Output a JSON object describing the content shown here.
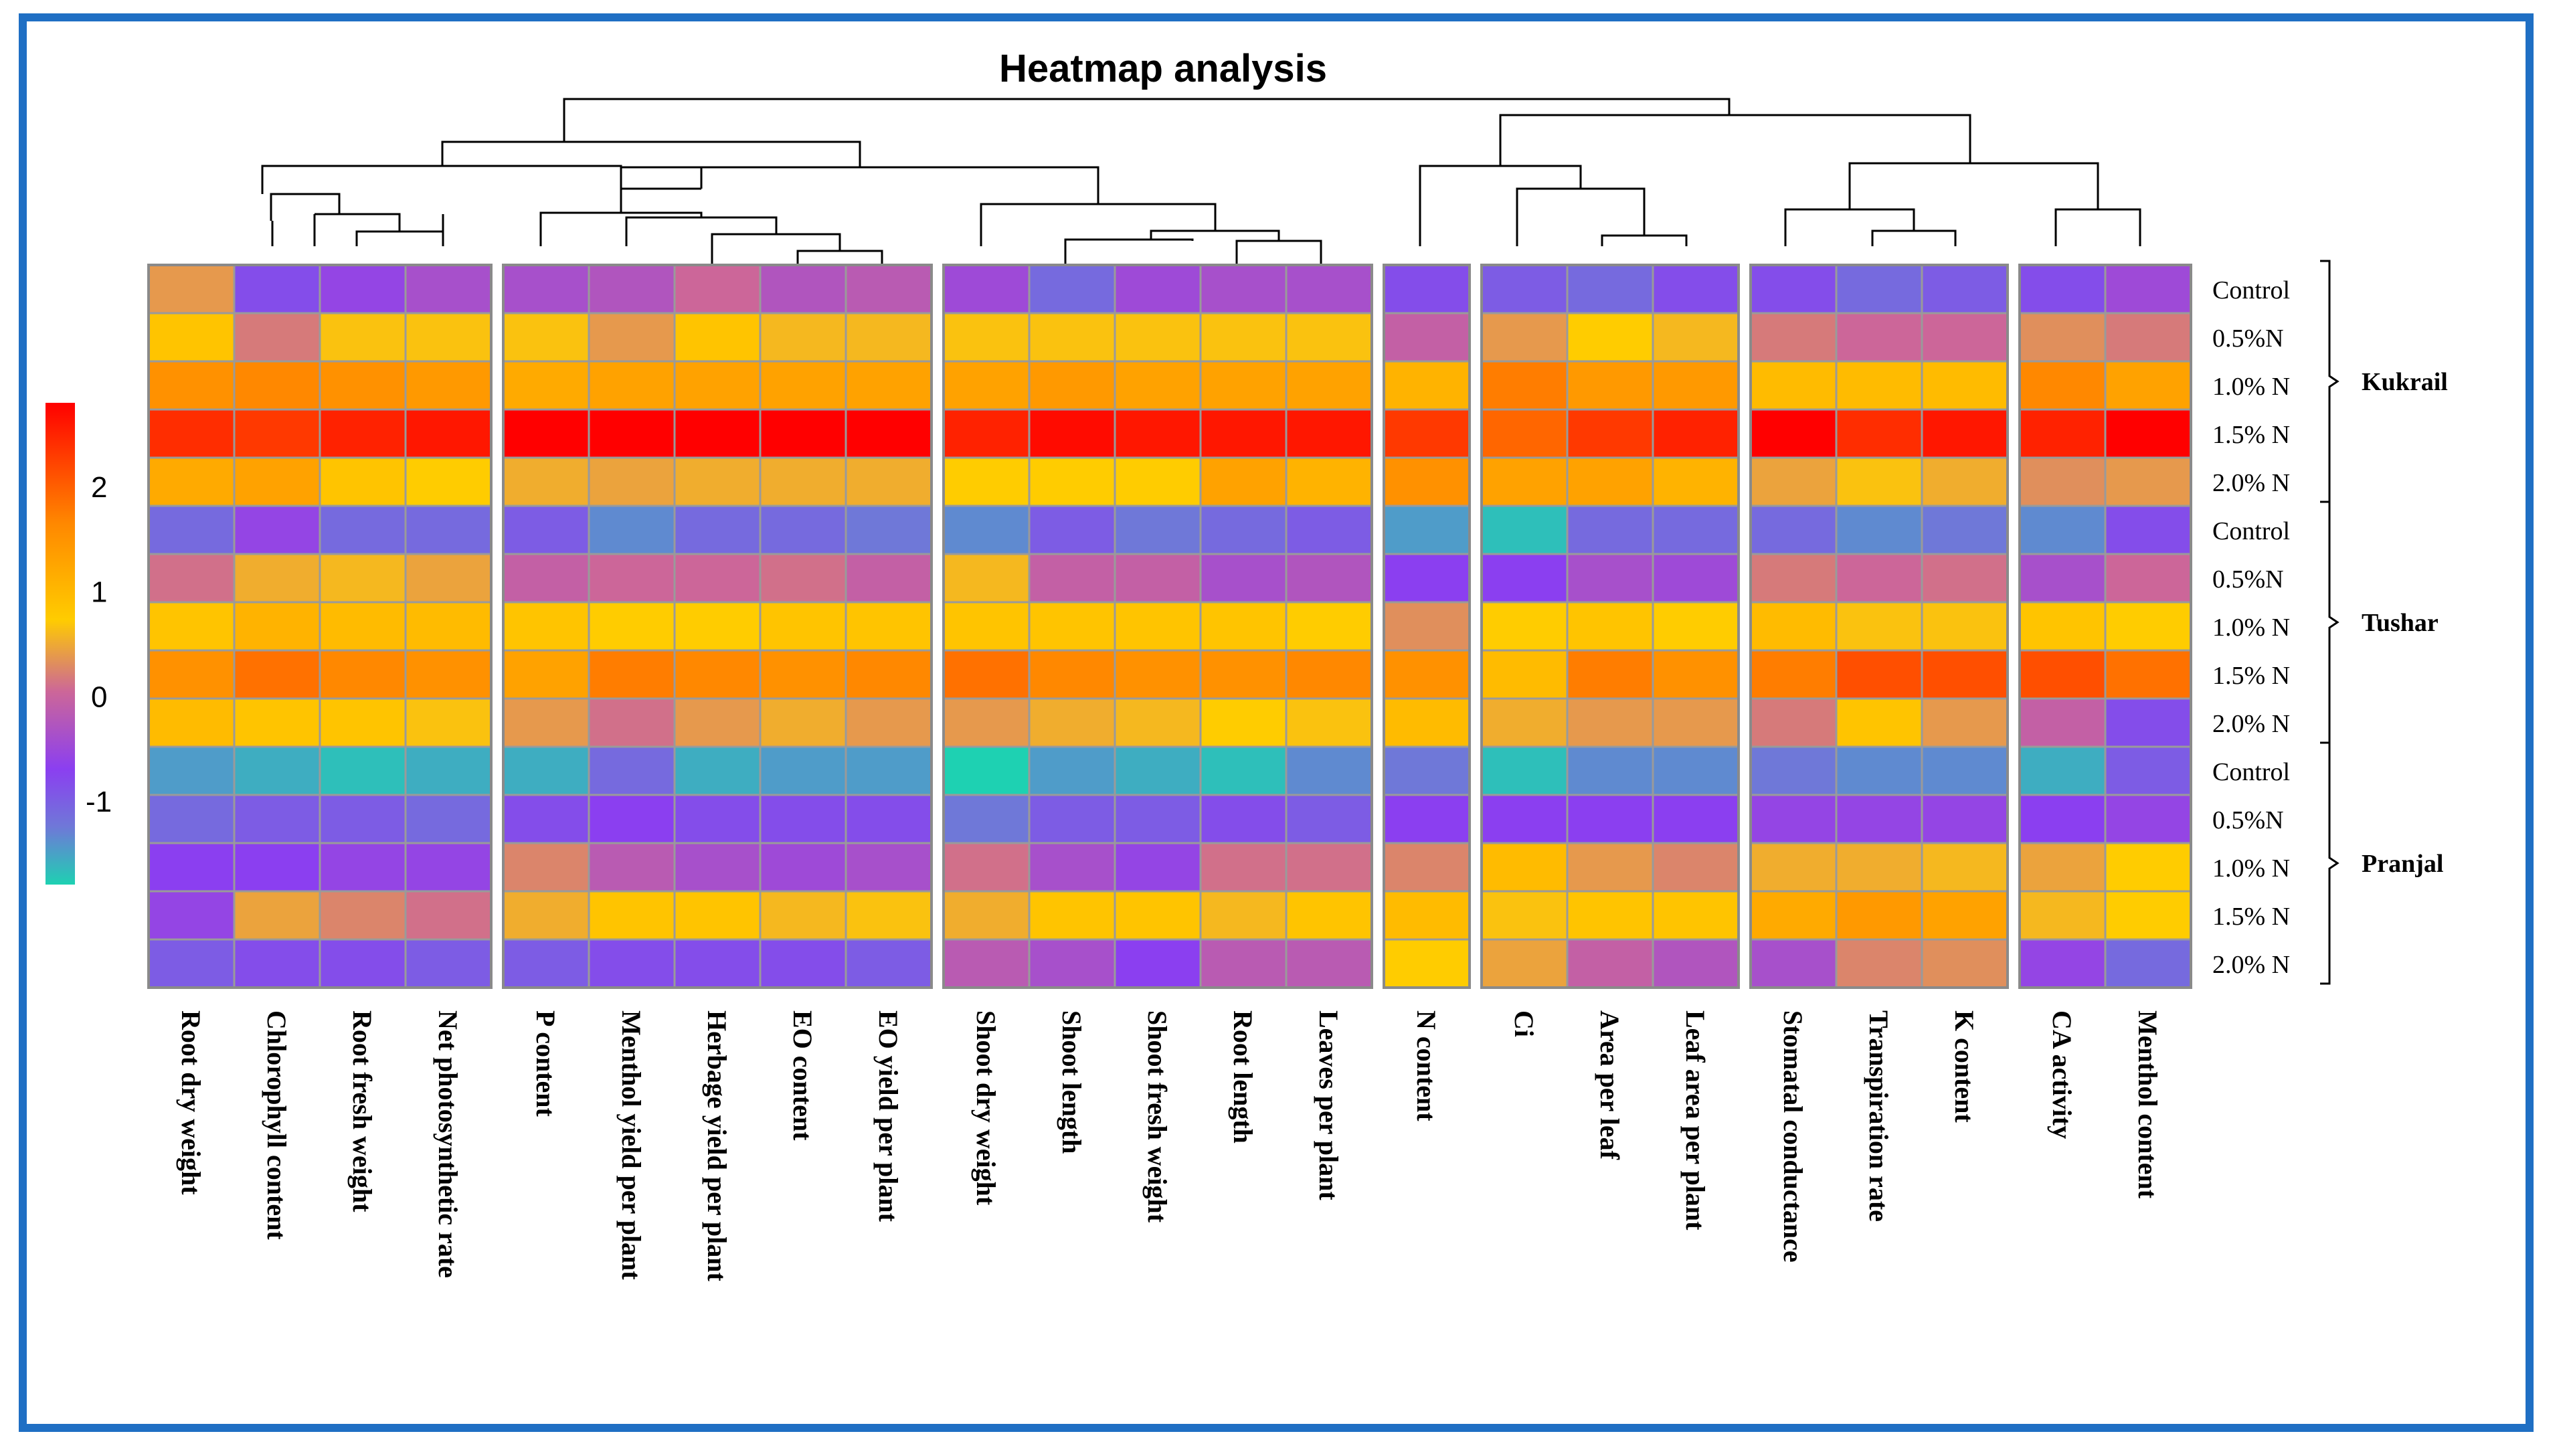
{
  "chart_data": {
    "type": "heatmap",
    "title": "Heatmap analysis",
    "rows": [
      "Control",
      "0.5%N",
      "1.0% N",
      "1.5% N",
      "2.0% N",
      "Control",
      "0.5%N",
      "1.0% N",
      "1.5% N",
      "2.0% N",
      "Control",
      "0.5%N",
      "1.0% N",
      "1.5% N",
      "2.0% N"
    ],
    "groups": [
      {
        "name": "Kukrail",
        "rows": [
          0,
          4
        ]
      },
      {
        "name": "Tushar",
        "rows": [
          5,
          9
        ]
      },
      {
        "name": "Pranjal",
        "rows": [
          10,
          14
        ]
      }
    ],
    "columns": [
      "Root dry weight",
      "Chlorophyll content",
      "Root fresh weight",
      "Net photosynthetic rate",
      "P content",
      "Menthol yield per plant",
      "Herbage yield per plant",
      "EO content",
      "EO yield per plant",
      "Shoot dry weight",
      "Shoot length",
      "Shoot fresh weight",
      "Root length",
      "Leaves per plant",
      "N content",
      "Ci",
      "Area per leaf",
      "Leaf area per plant",
      "Stomatal conductance",
      "Transpiration rate",
      "K content",
      "CA activity",
      "Menthol content"
    ],
    "column_blocks": [
      4,
      5,
      5,
      1,
      3,
      3,
      2
    ],
    "colorbar": {
      "ticks": [
        2,
        1,
        0,
        -1
      ],
      "range": [
        -1.8,
        2.8
      ],
      "colors": [
        "#1ed1b2",
        "#8b3ff0",
        "#cc6699",
        "#ffcc00",
        "#ff9900",
        "#ff0000"
      ]
    },
    "values": [
      [
        0.3,
        -1.0,
        -0.8,
        -0.6,
        -0.6,
        -0.5,
        -0.2,
        -0.5,
        -0.4,
        -0.7,
        -1.2,
        -0.7,
        -0.6,
        -0.6,
        -1.0,
        -1.1,
        -1.2,
        -1.0,
        -1.0,
        -1.2,
        -1.1,
        -1.0,
        -0.7
      ],
      [
        0.9,
        0.0,
        0.7,
        0.7,
        0.7,
        0.3,
        0.9,
        0.6,
        0.6,
        0.7,
        0.7,
        0.7,
        0.7,
        0.7,
        -0.3,
        0.3,
        0.8,
        0.6,
        0.0,
        -0.2,
        -0.2,
        0.2,
        0.0
      ],
      [
        1.5,
        1.6,
        1.5,
        1.4,
        1.2,
        1.3,
        1.3,
        1.3,
        1.3,
        1.3,
        1.4,
        1.3,
        1.3,
        1.3,
        1.1,
        1.7,
        1.4,
        1.4,
        1.0,
        1.0,
        1.0,
        1.6,
        1.3
      ],
      [
        2.4,
        2.3,
        2.5,
        2.6,
        2.8,
        2.8,
        2.8,
        2.8,
        2.8,
        2.5,
        2.7,
        2.6,
        2.6,
        2.6,
        2.3,
        1.9,
        2.3,
        2.5,
        2.8,
        2.4,
        2.6,
        2.5,
        2.8
      ],
      [
        1.2,
        1.3,
        0.9,
        0.8,
        0.5,
        0.4,
        0.5,
        0.5,
        0.5,
        0.8,
        0.8,
        0.8,
        1.3,
        1.1,
        1.5,
        1.3,
        1.3,
        1.1,
        0.4,
        0.7,
        0.5,
        0.2,
        0.3
      ],
      [
        -1.2,
        -0.8,
        -1.2,
        -1.2,
        -1.1,
        -1.4,
        -1.2,
        -1.2,
        -1.3,
        -1.4,
        -1.1,
        -1.3,
        -1.2,
        -1.1,
        -1.5,
        -1.7,
        -1.2,
        -1.2,
        -1.2,
        -1.4,
        -1.3,
        -1.4,
        -1.0
      ],
      [
        -0.1,
        0.5,
        0.6,
        0.4,
        -0.3,
        -0.2,
        -0.2,
        -0.1,
        -0.3,
        0.6,
        -0.3,
        -0.3,
        -0.6,
        -0.5,
        -0.9,
        -0.9,
        -0.6,
        -0.7,
        0.0,
        -0.2,
        -0.1,
        -0.6,
        -0.2
      ],
      [
        0.9,
        1.1,
        1.0,
        1.0,
        0.9,
        0.8,
        0.8,
        0.9,
        0.9,
        0.9,
        0.9,
        0.9,
        0.9,
        0.8,
        0.2,
        0.8,
        0.9,
        0.8,
        1.0,
        0.7,
        0.7,
        0.9,
        0.8
      ],
      [
        1.5,
        1.8,
        1.6,
        1.5,
        1.3,
        1.7,
        1.6,
        1.5,
        1.6,
        1.8,
        1.6,
        1.5,
        1.5,
        1.6,
        1.5,
        1.0,
        1.7,
        1.5,
        1.7,
        2.1,
        2.1,
        2.1,
        1.8
      ],
      [
        1.0,
        0.9,
        0.9,
        0.7,
        0.3,
        -0.1,
        0.3,
        0.5,
        0.3,
        0.3,
        0.5,
        0.6,
        0.8,
        0.7,
        1.0,
        0.5,
        0.3,
        0.3,
        0.0,
        0.9,
        0.3,
        -0.3,
        -1.0
      ],
      [
        -1.5,
        -1.6,
        -1.7,
        -1.6,
        -1.6,
        -1.2,
        -1.6,
        -1.5,
        -1.5,
        -2.0,
        -1.5,
        -1.6,
        -1.7,
        -1.4,
        -1.3,
        -1.7,
        -1.4,
        -1.4,
        -1.3,
        -1.4,
        -1.4,
        -1.6,
        -1.1
      ],
      [
        -1.2,
        -1.1,
        -1.1,
        -1.2,
        -1.0,
        -0.9,
        -1.0,
        -1.0,
        -1.0,
        -1.3,
        -1.1,
        -1.1,
        -1.0,
        -1.1,
        -0.9,
        -0.9,
        -0.9,
        -0.9,
        -0.8,
        -0.8,
        -0.8,
        -0.9,
        -0.8
      ],
      [
        -0.9,
        -0.9,
        -0.8,
        -0.8,
        0.1,
        -0.4,
        -0.6,
        -0.7,
        -0.6,
        -0.1,
        -0.6,
        -0.8,
        -0.1,
        -0.1,
        0.1,
        1.0,
        0.3,
        0.1,
        0.5,
        0.5,
        0.6,
        0.4,
        0.8
      ],
      [
        -0.8,
        0.4,
        0.1,
        -0.1,
        0.5,
        0.9,
        0.9,
        0.6,
        0.7,
        0.5,
        0.9,
        0.9,
        0.6,
        0.9,
        1.0,
        0.7,
        0.9,
        0.9,
        1.2,
        1.4,
        1.3,
        0.6,
        0.8
      ],
      [
        -1.1,
        -1.0,
        -1.0,
        -1.1,
        -1.1,
        -1.0,
        -1.0,
        -1.0,
        -1.1,
        -0.4,
        -0.6,
        -0.9,
        -0.4,
        -0.4,
        0.8,
        0.4,
        -0.3,
        -0.5,
        -0.6,
        0.1,
        0.2,
        -0.8,
        -1.2
      ]
    ]
  }
}
